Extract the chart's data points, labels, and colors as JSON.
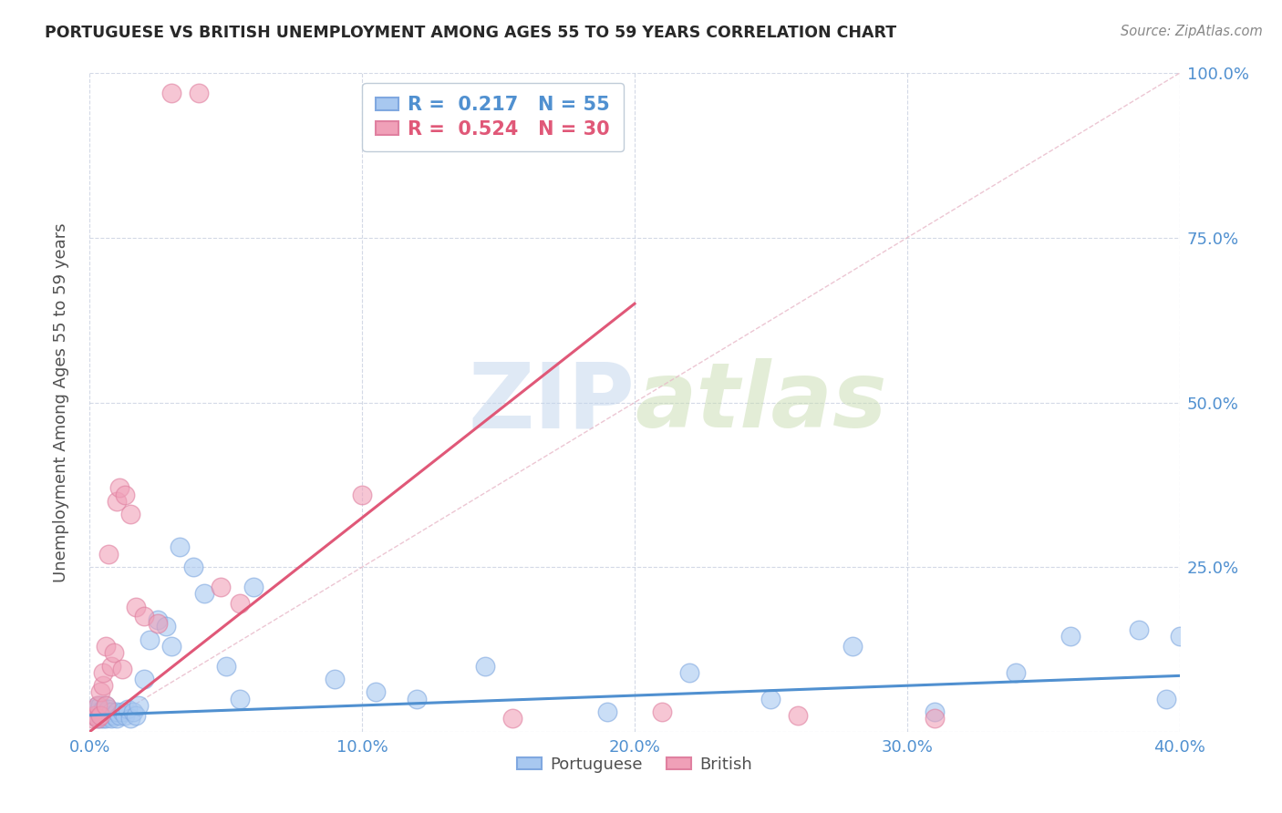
{
  "title": "PORTUGUESE VS BRITISH UNEMPLOYMENT AMONG AGES 55 TO 59 YEARS CORRELATION CHART",
  "source": "Source: ZipAtlas.com",
  "ylabel": "Unemployment Among Ages 55 to 59 years",
  "xlim": [
    0.0,
    0.4
  ],
  "ylim": [
    0.0,
    1.0
  ],
  "blue_color": "#A8C8F0",
  "pink_color": "#F0A0B8",
  "blue_line_color": "#5090D0",
  "pink_line_color": "#E05878",
  "ref_line_color": "#E8B8C8",
  "legend_blue_r": "0.217",
  "legend_blue_n": "55",
  "legend_pink_r": "0.524",
  "legend_pink_n": "30",
  "watermark_zip": "ZIP",
  "watermark_atlas": "atlas",
  "tick_color": "#5090D0",
  "portuguese_x": [
    0.001,
    0.002,
    0.002,
    0.003,
    0.003,
    0.003,
    0.004,
    0.004,
    0.004,
    0.005,
    0.005,
    0.005,
    0.006,
    0.006,
    0.006,
    0.007,
    0.007,
    0.008,
    0.008,
    0.009,
    0.01,
    0.01,
    0.011,
    0.012,
    0.013,
    0.014,
    0.015,
    0.016,
    0.017,
    0.018,
    0.02,
    0.022,
    0.025,
    0.028,
    0.03,
    0.033,
    0.038,
    0.042,
    0.05,
    0.055,
    0.06,
    0.09,
    0.105,
    0.12,
    0.145,
    0.19,
    0.22,
    0.25,
    0.28,
    0.31,
    0.34,
    0.36,
    0.385,
    0.395,
    0.4
  ],
  "portuguese_y": [
    0.03,
    0.025,
    0.035,
    0.02,
    0.03,
    0.04,
    0.02,
    0.03,
    0.04,
    0.02,
    0.025,
    0.035,
    0.02,
    0.03,
    0.04,
    0.025,
    0.035,
    0.02,
    0.03,
    0.025,
    0.02,
    0.03,
    0.025,
    0.03,
    0.025,
    0.035,
    0.02,
    0.03,
    0.025,
    0.04,
    0.08,
    0.14,
    0.17,
    0.16,
    0.13,
    0.28,
    0.25,
    0.21,
    0.1,
    0.05,
    0.22,
    0.08,
    0.06,
    0.05,
    0.1,
    0.03,
    0.09,
    0.05,
    0.13,
    0.03,
    0.09,
    0.145,
    0.155,
    0.05,
    0.145
  ],
  "british_x": [
    0.001,
    0.002,
    0.003,
    0.003,
    0.004,
    0.004,
    0.005,
    0.005,
    0.006,
    0.006,
    0.007,
    0.008,
    0.009,
    0.01,
    0.011,
    0.012,
    0.013,
    0.015,
    0.017,
    0.02,
    0.025,
    0.03,
    0.04,
    0.048,
    0.055,
    0.1,
    0.155,
    0.21,
    0.26,
    0.31
  ],
  "british_y": [
    0.02,
    0.025,
    0.02,
    0.04,
    0.025,
    0.06,
    0.07,
    0.09,
    0.04,
    0.13,
    0.27,
    0.1,
    0.12,
    0.35,
    0.37,
    0.095,
    0.36,
    0.33,
    0.19,
    0.175,
    0.165,
    0.97,
    0.97,
    0.22,
    0.195,
    0.36,
    0.02,
    0.03,
    0.025,
    0.02
  ],
  "blue_trend_x": [
    0.0,
    0.4
  ],
  "blue_trend_y": [
    0.025,
    0.085
  ],
  "pink_trend_x": [
    0.0,
    0.2
  ],
  "pink_trend_y": [
    0.0,
    0.65
  ],
  "ref_line_x": [
    0.0,
    0.4
  ],
  "ref_line_y": [
    0.0,
    1.0
  ]
}
